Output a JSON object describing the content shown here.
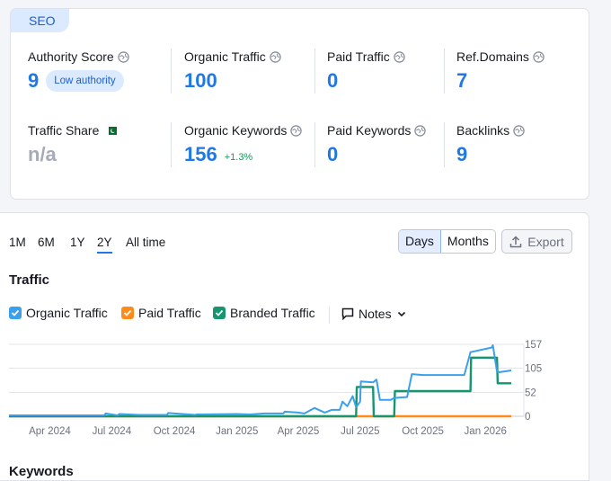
{
  "seo": {
    "tag": "SEO",
    "metrics": {
      "authority_score": {
        "label": "Authority Score",
        "value": "9",
        "badge": "Low authority"
      },
      "organic_traffic": {
        "label": "Organic Traffic",
        "value": "100"
      },
      "paid_traffic": {
        "label": "Paid Traffic",
        "value": "0"
      },
      "ref_domains": {
        "label": "Ref.Domains",
        "value": "7"
      },
      "traffic_share": {
        "label": "Traffic Share",
        "value": "n/a"
      },
      "organic_keywords": {
        "label": "Organic Keywords",
        "value": "156",
        "delta": "+1.3%"
      },
      "paid_keywords": {
        "label": "Paid Keywords",
        "value": "0"
      },
      "backlinks": {
        "label": "Backlinks",
        "value": "9"
      }
    }
  },
  "traffic": {
    "ranges": [
      "1M",
      "6M",
      "1Y",
      "2Y",
      "All time"
    ],
    "active_range": "2Y",
    "granularity": {
      "days": "Days",
      "months": "Months",
      "selected": "Days"
    },
    "export_label": "Export",
    "section_title": "Traffic",
    "legend": {
      "organic": "Organic Traffic",
      "paid": "Paid Traffic",
      "branded": "Branded Traffic",
      "notes": "Notes"
    }
  },
  "keywords": {
    "section_title": "Keywords"
  },
  "colors": {
    "accent": "#1f78e4",
    "organic": "#3aa0ec",
    "paid": "#ff8c1a",
    "branded": "#15966e",
    "positive": "#15995c"
  },
  "chart_data": {
    "type": "line",
    "title": "Traffic",
    "x_tick_labels": [
      "Apr 2024",
      "Jul 2024",
      "Oct 2024",
      "Jan 2025",
      "Apr 2025",
      "Jul 2025",
      "Oct 2025",
      "Jan 2026"
    ],
    "y_ticks": [
      0,
      52,
      105,
      157
    ],
    "ylim": [
      0,
      157
    ],
    "grid": true,
    "y_axis_side": "right",
    "series": [
      {
        "name": "Organic Traffic",
        "color": "#3aa0ec",
        "x": [
          "2024-02-01",
          "2024-06-20",
          "2024-06-22",
          "2024-07-10",
          "2024-07-12",
          "2024-08-10",
          "2024-09-20",
          "2024-09-22",
          "2024-11-01",
          "2024-11-03",
          "2025-01-01",
          "2025-01-20",
          "2025-02-10",
          "2025-03-10",
          "2025-03-12",
          "2025-04-01",
          "2025-04-10",
          "2025-04-25",
          "2025-05-10",
          "2025-05-20",
          "2025-06-01",
          "2025-06-05",
          "2025-06-12",
          "2025-06-20",
          "2025-06-25",
          "2025-07-01",
          "2025-07-02",
          "2025-07-20",
          "2025-07-25",
          "2025-07-30",
          "2025-08-15",
          "2025-08-20",
          "2025-09-08",
          "2025-09-15",
          "2025-10-01",
          "2025-11-15",
          "2025-12-01",
          "2025-12-10",
          "2026-01-10",
          "2026-01-12",
          "2026-01-18",
          "2026-01-20",
          "2026-02-08"
        ],
        "y": [
          2,
          2,
          6,
          2,
          5,
          3,
          3,
          7,
          3,
          4,
          5,
          4,
          6,
          6,
          10,
          8,
          6,
          18,
          8,
          14,
          14,
          32,
          22,
          44,
          20,
          32,
          76,
          74,
          80,
          36,
          36,
          40,
          42,
          92,
          90,
          90,
          90,
          140,
          150,
          155,
          98,
          96,
          100
        ]
      },
      {
        "name": "Paid Traffic",
        "color": "#ff8c1a",
        "x": [
          "2024-02-01",
          "2025-06-22",
          "2025-06-23",
          "2026-02-08"
        ],
        "y": [
          0,
          0,
          0,
          0
        ]
      },
      {
        "name": "Branded Traffic",
        "color": "#15966e",
        "x": [
          "2024-02-01",
          "2025-06-25",
          "2025-06-26",
          "2025-07-20",
          "2025-07-21",
          "2025-08-20",
          "2025-08-21",
          "2025-12-10",
          "2025-12-11",
          "2026-01-18",
          "2026-01-19",
          "2026-02-08"
        ],
        "y": [
          0,
          0,
          64,
          64,
          0,
          0,
          55,
          55,
          128,
          128,
          72,
          72
        ]
      }
    ]
  }
}
